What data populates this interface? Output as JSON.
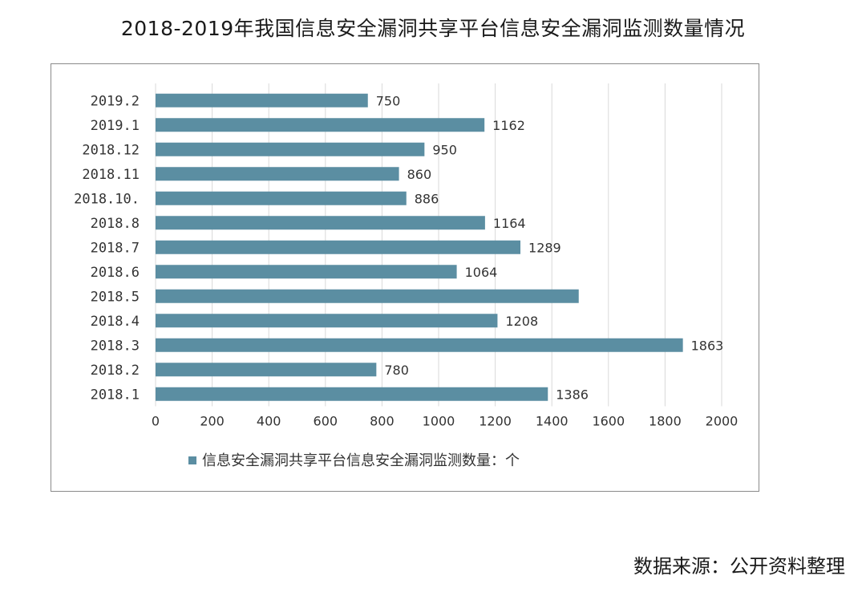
{
  "title": "2018-2019年我国信息安全漏洞共享平台信息安全漏洞监测数量情况",
  "source": "数据来源：公开资料整理",
  "colors": {
    "bar": "#5b8ea2",
    "grid": "#d9d9d9",
    "frame": "#8a8a8a"
  },
  "chart_data": {
    "type": "bar",
    "orientation": "horizontal",
    "categories": [
      "2019.2",
      "2019.1",
      "2018.12",
      "2018.11",
      "2018.10.",
      "2018.8",
      "2018.7",
      "2018.6",
      "2018.5",
      "2018.4",
      "2018.3",
      "2018.2",
      "2018.1"
    ],
    "series": [
      {
        "name": "信息安全漏洞共享平台信息安全漏洞监测数量：个",
        "values": [
          750,
          1162,
          950,
          860,
          886,
          1164,
          1289,
          1064,
          1495,
          1208,
          1863,
          780,
          1386
        ],
        "labels": [
          "750",
          "1162",
          "950",
          "860",
          "886",
          "1164",
          "1289",
          "1064",
          "",
          "1208",
          "1863",
          "780",
          "1386"
        ]
      }
    ],
    "xlim": [
      0,
      2000
    ],
    "xticks": [
      "0",
      "200",
      "400",
      "600",
      "800",
      "1000",
      "1200",
      "1400",
      "1600",
      "1800",
      "2000"
    ],
    "grid": "vertical",
    "legend": "bottom"
  }
}
